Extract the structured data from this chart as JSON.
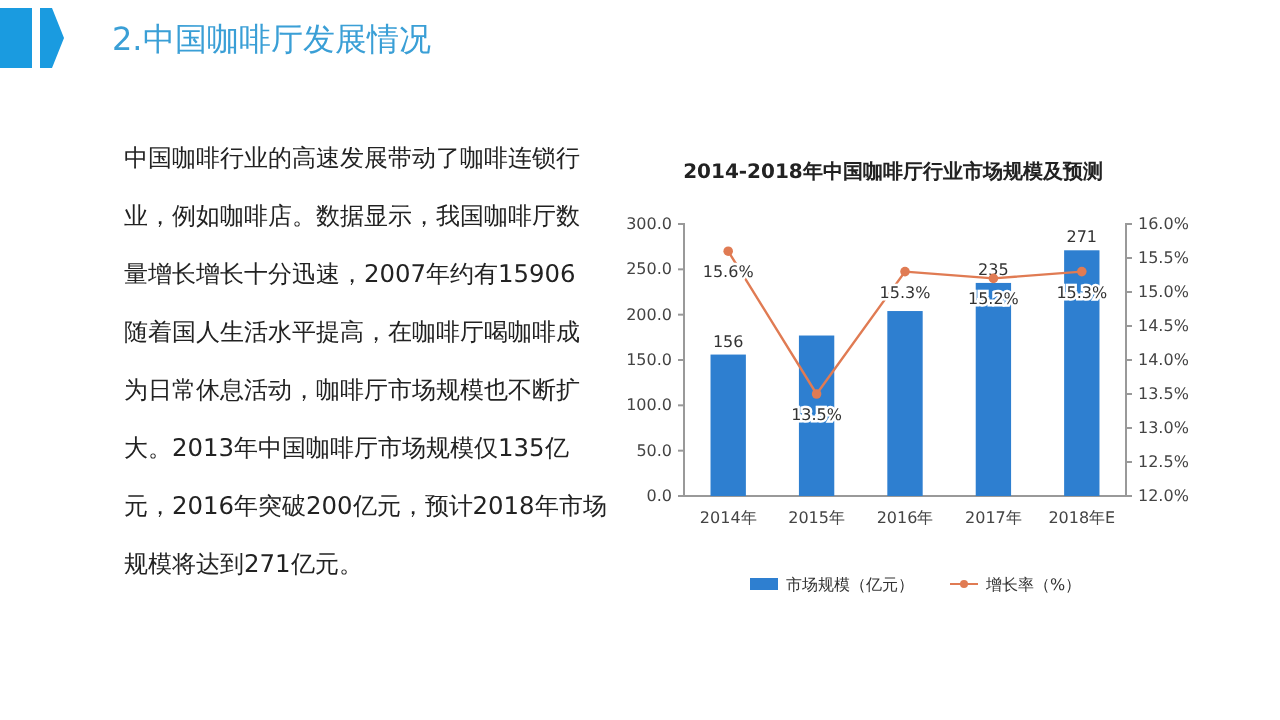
{
  "chart_data": [
    {
      "type": "other",
      "title": "2.中国咖啡厅发展情况",
      "annotations": [
        "中国咖啡行业的高速发展带动了咖啡连锁行",
        "业，例如咖啡店。数据显示，我国咖啡厅数",
        "量增长增长十分迅速，2007年约有15906",
        "随着国人生活水平提高，在咖啡厅喝咖啡成",
        "为日常休息活动，咖啡厅市场规模也不断扩",
        "大。2013年中国咖啡厅市场规模仅135亿",
        "元，2016年突破200亿元，预计2018年市场",
        "规模将达到271亿元。"
      ]
    },
    {
      "type": "bar",
      "title": "2014-2018年中国咖啡厅行业市场规模及预测",
      "categories": [
        "2014年",
        "2015年",
        "2016年",
        "2017年",
        "2018年E"
      ],
      "series": [
        {
          "name": "市场规模（亿元）",
          "type": "bar",
          "color": "#2e7fd0",
          "values": [
            156,
            177,
            204,
            235,
            271
          ],
          "value_labels": [
            "156",
            null,
            null,
            "235",
            "271"
          ]
        },
        {
          "name": "增长率（%）",
          "type": "line",
          "axis": "y2",
          "color": "#e07b53",
          "values": [
            15.6,
            13.5,
            15.3,
            15.2,
            15.3
          ],
          "value_labels": [
            "15.6%",
            "13.5%",
            "15.3%",
            "15.2%",
            "15.3%"
          ]
        }
      ],
      "ylim": [
        0,
        300
      ],
      "yticks": [
        {
          "value": 0,
          "label": "0.0"
        },
        {
          "value": 50,
          "label": "50.0"
        },
        {
          "value": 100,
          "label": "100.0"
        },
        {
          "value": 150,
          "label": "150.0"
        },
        {
          "value": 200,
          "label": "200.0"
        },
        {
          "value": 250,
          "label": "250.0"
        },
        {
          "value": 300,
          "label": "300.0"
        }
      ],
      "y2lim": [
        12,
        16
      ],
      "y2ticks": [
        {
          "value": 12,
          "label": "12.0%"
        },
        {
          "value": 12.5,
          "label": "12.5%"
        },
        {
          "value": 13,
          "label": "13.0%"
        },
        {
          "value": 13.5,
          "label": "13.5%"
        },
        {
          "value": 14,
          "label": "14.0%"
        },
        {
          "value": 14.5,
          "label": "14.5%"
        },
        {
          "value": 15,
          "label": "15.0%"
        },
        {
          "value": 15.5,
          "label": "15.5%"
        },
        {
          "value": 16,
          "label": "16.0%"
        }
      ],
      "legend": "bottom",
      "marker": "circle"
    }
  ]
}
